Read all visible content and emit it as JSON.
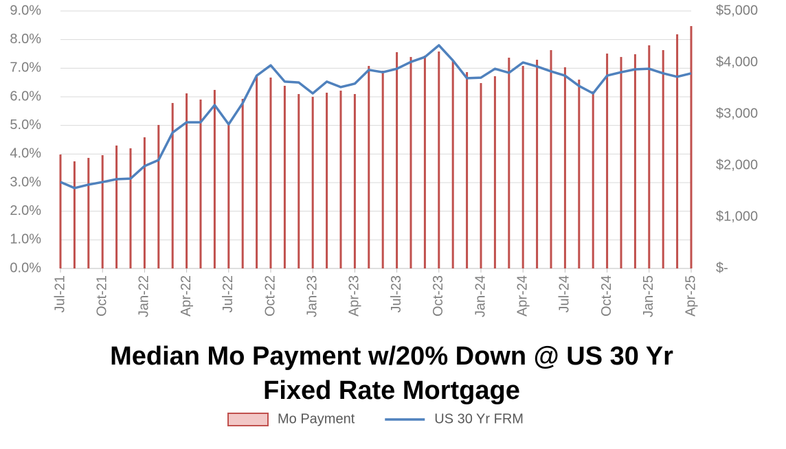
{
  "chart_data": {
    "type": "bar",
    "title": "Median Mo Payment w/20% Down @ US 30 Yr Fixed Rate Mortgage",
    "categories": [
      "Jul-21",
      null,
      null,
      "Oct-21",
      null,
      null,
      "Jan-22",
      null,
      null,
      "Apr-22",
      null,
      null,
      "Jul-22",
      null,
      null,
      "Oct-22",
      null,
      null,
      "Jan-23",
      null,
      null,
      "Apr-23",
      null,
      null,
      "Jul-23",
      null,
      null,
      "Oct-23",
      null,
      null,
      "Jan-24",
      null,
      null,
      "Apr-24",
      null,
      null,
      "Jul-24",
      null,
      null,
      "Oct-24",
      null,
      null,
      "Jan-25",
      null,
      null,
      "Apr-25"
    ],
    "series": [
      {
        "name": "Mo Payment",
        "type": "bar",
        "axis": "y2",
        "color": "#c0504d",
        "values": [
          2213,
          2080,
          2147,
          2200,
          2387,
          2333,
          2547,
          2787,
          3213,
          3400,
          3280,
          3467,
          2813,
          3293,
          3747,
          3707,
          3547,
          3387,
          3333,
          3413,
          3453,
          3387,
          3933,
          3840,
          4200,
          4107,
          4133,
          4213,
          4040,
          3813,
          3600,
          3733,
          4093,
          3933,
          4053,
          4240,
          3907,
          3667,
          3440,
          4173,
          4107,
          4160,
          4333,
          4240,
          4547,
          4707
        ]
      },
      {
        "name": "US 30 Yr FRM",
        "type": "line",
        "color": "#4f81bd",
        "values": [
          3.02,
          2.81,
          2.93,
          3.02,
          3.12,
          3.14,
          3.58,
          3.79,
          4.75,
          5.11,
          5.11,
          5.71,
          5.04,
          5.78,
          6.74,
          7.1,
          6.53,
          6.5,
          6.12,
          6.53,
          6.34,
          6.46,
          6.94,
          6.86,
          6.98,
          7.22,
          7.39,
          7.8,
          7.27,
          6.65,
          6.67,
          6.98,
          6.84,
          7.2,
          7.06,
          6.89,
          6.74,
          6.38,
          6.12,
          6.74,
          6.86,
          6.96,
          6.98,
          6.82,
          6.7,
          6.82
        ]
      }
    ],
    "ylim": [
      0,
      9
    ],
    "yticks": [
      {
        "value": 0,
        "label": "0.0%"
      },
      {
        "value": 1,
        "label": "1.0%"
      },
      {
        "value": 2,
        "label": "2.0%"
      },
      {
        "value": 3,
        "label": "3.0%"
      },
      {
        "value": 4,
        "label": "4.0%"
      },
      {
        "value": 5,
        "label": "5.0%"
      },
      {
        "value": 6,
        "label": "6.0%"
      },
      {
        "value": 7,
        "label": "7.0%"
      },
      {
        "value": 8,
        "label": "8.0%"
      },
      {
        "value": 9,
        "label": "9.0%"
      }
    ],
    "y2lim": [
      0,
      5000
    ],
    "y2ticks": [
      {
        "value": 0,
        "label": "$-"
      },
      {
        "value": 1000,
        "label": "$1,000"
      },
      {
        "value": 2000,
        "label": "$2,000"
      },
      {
        "value": 3000,
        "label": "$3,000"
      },
      {
        "value": 4000,
        "label": "$4,000"
      },
      {
        "value": 5000,
        "label": "$5,000"
      }
    ],
    "grid": true,
    "legend": "bottom"
  }
}
